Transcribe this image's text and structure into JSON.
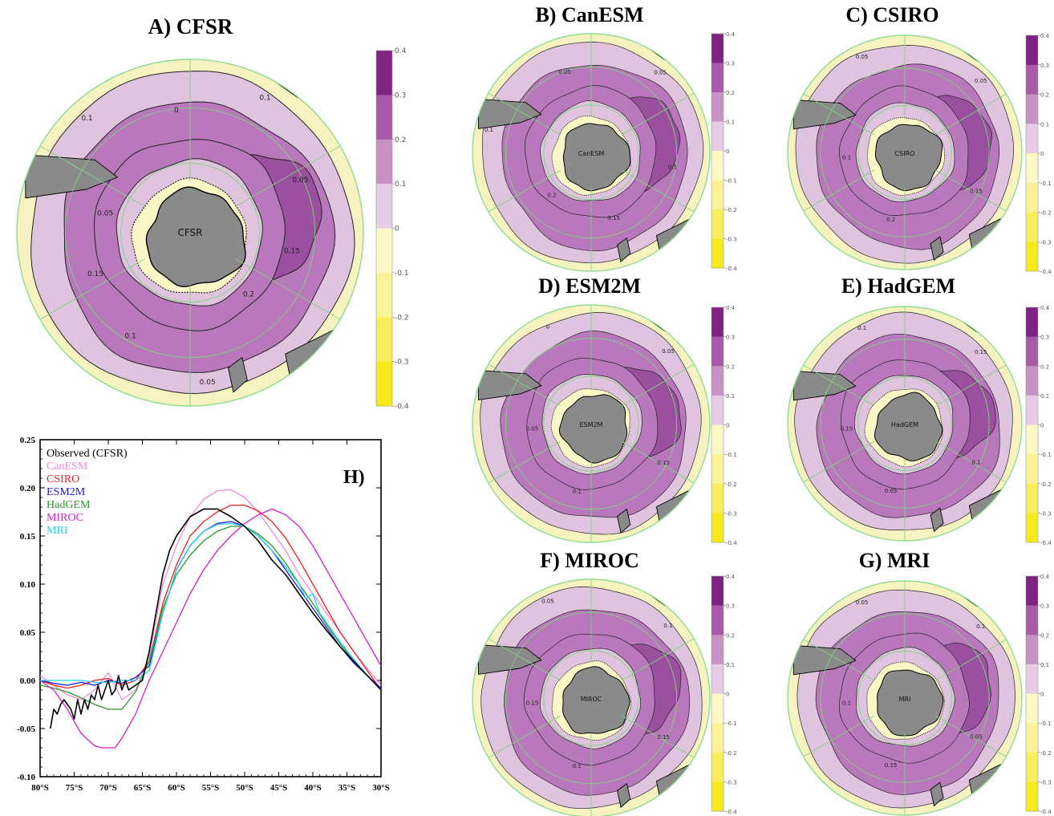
{
  "colors": {
    "c_0_01": "#fbf7c6",
    "c_01_02": "#dfc3df",
    "c_02_03": "#b978bc",
    "c_03_04": "#9a4f9f",
    "c_04": "#7c2c84",
    "land": "#8a8a8a",
    "outer": "#f7f3c0",
    "cb_neg": [
      "#fdf9c4",
      "#fbf397",
      "#f8ee5b",
      "#f6ea1f"
    ],
    "cb_pos": [
      "#e7cce6",
      "#c892c7",
      "#a85aa9",
      "#7f2382"
    ]
  },
  "colorbar": {
    "ticks": [
      "0.4",
      "0.3",
      "0.2",
      "0.1",
      "0",
      "-0.1",
      "-0.2",
      "-0.3",
      "-0.4"
    ]
  },
  "panels": [
    {
      "id": "A",
      "title": "A) CFSR",
      "center_label": "CFSR",
      "contour_labels": [
        "0.1",
        "0.05",
        "0.15",
        "0.2",
        "0.05",
        "0.1",
        "0.15",
        "0.05",
        "0.1",
        "0"
      ]
    },
    {
      "id": "B",
      "title": "B) CanESM",
      "center_label": "CanESM",
      "contour_labels": [
        "0.05",
        "0.1",
        "0.15",
        "0.2",
        "0.1",
        "0.05"
      ]
    },
    {
      "id": "C",
      "title": "C) CSIRO",
      "center_label": "CSIRO",
      "contour_labels": [
        "0.05",
        "0.15",
        "0.2",
        "0.1",
        "0.05"
      ]
    },
    {
      "id": "D",
      "title": "D) ESM2M",
      "center_label": "ESM2M",
      "contour_labels": [
        "0.05",
        "0.15",
        "0.1",
        "0.05",
        "0"
      ]
    },
    {
      "id": "E",
      "title": "E) HadGEM",
      "center_label": "HadGEM",
      "contour_labels": [
        "0.15",
        "0.1",
        "0.05",
        "0.15",
        "0.1"
      ]
    },
    {
      "id": "F",
      "title": "F) MIROC",
      "center_label": "MIROC",
      "contour_labels": [
        "0.1",
        "0.15",
        "0.1",
        "0.15",
        "0.05"
      ]
    },
    {
      "id": "G",
      "title": "G) MRI",
      "center_label": "MRI",
      "contour_labels": [
        "0.1",
        "0.05",
        "0.15",
        "0.1",
        "0.05"
      ]
    }
  ],
  "chart_data": {
    "type": "line",
    "panel_label": "H)",
    "xlabel": "",
    "ylabel": "",
    "xlim": [
      -80,
      -30
    ],
    "ylim": [
      -0.1,
      0.25
    ],
    "x_ticks": [
      -80,
      -75,
      -70,
      -65,
      -60,
      -55,
      -50,
      -45,
      -40,
      -35,
      -30
    ],
    "x_tick_labels": [
      "80°S",
      "75°S",
      "70°S",
      "65°S",
      "60°S",
      "55°S",
      "50°S",
      "45°S",
      "40°S",
      "35°S",
      "30°S"
    ],
    "y_ticks": [
      -0.1,
      -0.05,
      0.0,
      0.05,
      0.1,
      0.15,
      0.2,
      0.25
    ],
    "y_tick_labels": [
      "-0.10",
      "-0.05",
      "0.00",
      "0.05",
      "0.10",
      "0.15",
      "0.20",
      "0.25"
    ],
    "legend_position": "top-left",
    "series": [
      {
        "name": "Observed (CFSR)",
        "color": "#000000",
        "x": [
          -78.5,
          -78,
          -77.5,
          -77,
          -76.5,
          -76,
          -75.5,
          -75,
          -74.5,
          -74,
          -73.5,
          -73,
          -72.5,
          -72,
          -71.5,
          -71,
          -70.5,
          -70,
          -69.5,
          -69,
          -68.5,
          -68,
          -67.5,
          -67,
          -66,
          -65,
          -64,
          -63,
          -62,
          -61,
          -60,
          -58,
          -56,
          -54,
          -52,
          -50,
          -48,
          -46,
          -44,
          -42,
          -40,
          -38,
          -36,
          -34,
          -32,
          -30
        ],
        "y": [
          -0.05,
          -0.03,
          -0.035,
          -0.025,
          -0.02,
          -0.025,
          -0.03,
          -0.04,
          -0.02,
          -0.035,
          -0.02,
          -0.03,
          -0.015,
          -0.02,
          -0.005,
          -0.02,
          -0.01,
          0.0,
          -0.015,
          -0.01,
          0.005,
          -0.01,
          0.0,
          -0.01,
          -0.005,
          0.0,
          0.03,
          0.07,
          0.11,
          0.135,
          0.15,
          0.17,
          0.178,
          0.178,
          0.17,
          0.16,
          0.145,
          0.125,
          0.11,
          0.09,
          0.07,
          0.052,
          0.035,
          0.02,
          0.005,
          -0.01
        ]
      },
      {
        "name": "CanESM",
        "color": "#f08ad0",
        "x": [
          -80,
          -78,
          -76,
          -74,
          -72,
          -70,
          -68,
          -66,
          -64,
          -62,
          -60,
          -58,
          -56,
          -54,
          -52,
          -50,
          -48,
          -46,
          -44,
          -42,
          -40,
          -38,
          -36,
          -34,
          -32,
          -30
        ],
        "y": [
          0.005,
          -0.005,
          -0.015,
          -0.02,
          -0.01,
          0.008,
          -0.02,
          -0.01,
          0.025,
          0.1,
          0.14,
          0.17,
          0.188,
          0.197,
          0.198,
          0.19,
          0.175,
          0.155,
          0.135,
          0.11,
          0.09,
          0.07,
          0.05,
          0.03,
          0.012,
          -0.005
        ]
      },
      {
        "name": "CSIRO",
        "color": "#e82020",
        "x": [
          -80,
          -78,
          -76,
          -74,
          -72,
          -70,
          -68,
          -66,
          -64,
          -62,
          -60,
          -58,
          -56,
          -54,
          -52,
          -50,
          -48,
          -46,
          -44,
          -42,
          -40,
          -38,
          -36,
          -34,
          -32,
          -30
        ],
        "y": [
          0.0,
          -0.005,
          -0.008,
          -0.005,
          0.0,
          0.002,
          -0.005,
          0.0,
          0.02,
          0.08,
          0.12,
          0.15,
          0.165,
          0.175,
          0.182,
          0.182,
          0.176,
          0.165,
          0.148,
          0.125,
          0.1,
          0.075,
          0.05,
          0.03,
          0.01,
          -0.01
        ]
      },
      {
        "name": "ESM2M",
        "color": "#1a1ad0",
        "x": [
          -80,
          -78,
          -76,
          -74,
          -72,
          -70,
          -68,
          -66,
          -64,
          -62,
          -60,
          -58,
          -56,
          -54,
          -52,
          -50,
          -48,
          -46,
          -44,
          -42,
          -40,
          -38,
          -36,
          -34,
          -32,
          -30
        ],
        "y": [
          0.0,
          -0.003,
          -0.005,
          -0.002,
          -0.005,
          0.0,
          -0.003,
          0.003,
          0.015,
          0.07,
          0.115,
          0.14,
          0.155,
          0.163,
          0.165,
          0.16,
          0.15,
          0.135,
          0.115,
          0.095,
          0.075,
          0.055,
          0.035,
          0.018,
          0.005,
          -0.008
        ]
      },
      {
        "name": "HadGEM",
        "color": "#2a9a2a",
        "x": [
          -80,
          -78,
          -76,
          -74,
          -72,
          -70,
          -68,
          -66,
          -64,
          -62,
          -60,
          -58,
          -56,
          -54,
          -52,
          -50,
          -48,
          -46,
          -44,
          -42,
          -40,
          -38,
          -36,
          -34,
          -32,
          -30
        ],
        "y": [
          -0.005,
          -0.008,
          -0.012,
          -0.018,
          -0.025,
          -0.03,
          -0.03,
          -0.012,
          0.02,
          0.075,
          0.11,
          0.13,
          0.145,
          0.155,
          0.16,
          0.16,
          0.152,
          0.14,
          0.122,
          0.1,
          0.08,
          0.058,
          0.038,
          0.02,
          0.005,
          -0.01
        ]
      },
      {
        "name": "MIROC",
        "color": "#d020d0",
        "x": [
          -80,
          -78,
          -76,
          -74,
          -72,
          -71,
          -70,
          -69,
          -68,
          -66,
          -64,
          -62,
          -60,
          -58,
          -56,
          -54,
          -52,
          -50,
          -48,
          -46,
          -44,
          -42,
          -40,
          -38,
          -36,
          -34,
          -32,
          -30
        ],
        "y": [
          0.0,
          -0.01,
          -0.03,
          -0.055,
          -0.068,
          -0.07,
          -0.07,
          -0.07,
          -0.06,
          -0.035,
          0.0,
          0.03,
          0.06,
          0.09,
          0.115,
          0.135,
          0.15,
          0.163,
          0.172,
          0.178,
          0.172,
          0.16,
          0.14,
          0.115,
          0.09,
          0.065,
          0.04,
          0.015
        ]
      },
      {
        "name": "MRI",
        "color": "#22d0e8",
        "x": [
          -80,
          -78,
          -76,
          -74,
          -72,
          -70,
          -68,
          -66,
          -64,
          -62,
          -60,
          -58,
          -56,
          -54,
          -52,
          -50,
          -48,
          -46,
          -44,
          -42,
          -41,
          -40,
          -39,
          -38,
          -36,
          -34,
          -32,
          -30
        ],
        "y": [
          0.0,
          0.0,
          0.0,
          0.0,
          -0.002,
          -0.002,
          0.0,
          0.0,
          0.01,
          0.07,
          0.115,
          0.14,
          0.155,
          0.162,
          0.163,
          0.16,
          0.15,
          0.135,
          0.118,
          0.1,
          0.085,
          0.09,
          0.07,
          0.06,
          0.04,
          0.022,
          0.005,
          -0.01
        ]
      }
    ]
  }
}
